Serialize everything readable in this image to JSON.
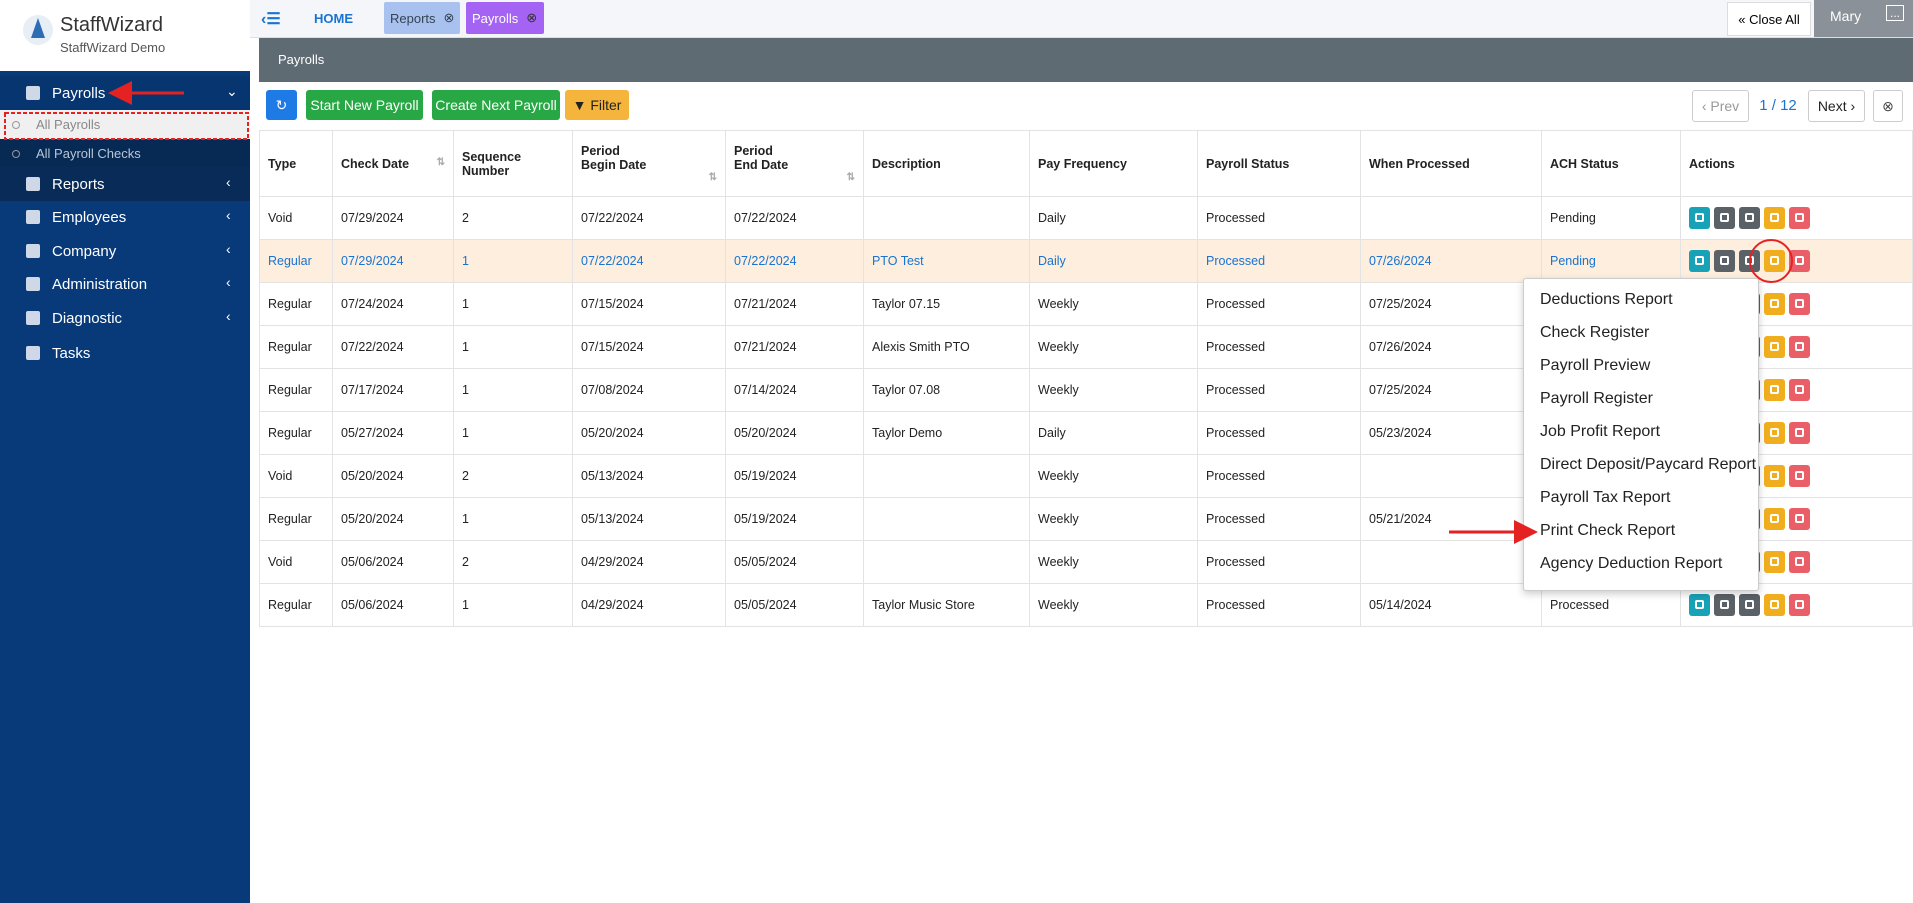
{
  "sidebar": {
    "brand": "StaffWizard",
    "subtitle": "StaffWizard Demo",
    "nav": [
      {
        "label": "Payrolls"
      },
      {
        "label": "Reports"
      },
      {
        "label": "Employees"
      },
      {
        "label": "Company"
      },
      {
        "label": "Administration"
      },
      {
        "label": "Diagnostic"
      },
      {
        "label": "Tasks"
      }
    ],
    "subnav": [
      "All Payrolls",
      "All Payroll Checks"
    ]
  },
  "topbar": {
    "home": "HOME",
    "tabs": [
      "Reports",
      "Payrolls"
    ],
    "close_all": "Close All",
    "user": "Mary",
    "more": "..."
  },
  "page": {
    "title": "Payrolls"
  },
  "toolbar": {
    "buttons": [
      "Start New Payroll",
      "Create Next Payroll",
      "Filter"
    ],
    "prev": "Prev",
    "page": "1 / 12",
    "next": "Next"
  },
  "table": {
    "columns": [
      "Type",
      "Check Date",
      "Sequence Number",
      "Period\nBegin Date",
      "Period\nEnd Date",
      "Description",
      "Pay Frequency",
      "Payroll Status",
      "When Processed",
      "ACH Status",
      "Actions"
    ],
    "rows": [
      [
        "Void",
        "07/29/2024",
        "2",
        "07/22/2024",
        "07/22/2024",
        null,
        "Daily",
        "Processed",
        null,
        "Pending"
      ],
      [
        "Regular",
        "07/29/2024",
        "1",
        "07/22/2024",
        "07/22/2024",
        "PTO Test",
        "Daily",
        "Processed",
        "07/26/2024",
        "Pending"
      ],
      [
        "Regular",
        "07/24/2024",
        "1",
        "07/15/2024",
        "07/21/2024",
        "Taylor 07.15",
        "Weekly",
        "Processed",
        "07/25/2024",
        null
      ],
      [
        "Regular",
        "07/22/2024",
        "1",
        "07/15/2024",
        "07/21/2024",
        "Alexis Smith PTO",
        "Weekly",
        "Processed",
        "07/26/2024",
        null
      ],
      [
        "Regular",
        "07/17/2024",
        "1",
        "07/08/2024",
        "07/14/2024",
        "Taylor 07.08",
        "Weekly",
        "Processed",
        "07/25/2024",
        null
      ],
      [
        "Regular",
        "05/27/2024",
        "1",
        "05/20/2024",
        "05/20/2024",
        "Taylor Demo",
        "Daily",
        "Processed",
        "05/23/2024",
        null
      ],
      [
        "Void",
        "05/20/2024",
        "2",
        "05/13/2024",
        "05/19/2024",
        null,
        "Weekly",
        "Processed",
        null,
        null
      ],
      [
        "Regular",
        "05/20/2024",
        "1",
        "05/13/2024",
        "05/19/2024",
        null,
        "Weekly",
        "Processed",
        "05/21/2024",
        null
      ],
      [
        "Void",
        "05/06/2024",
        "2",
        "04/29/2024",
        "05/05/2024",
        null,
        "Weekly",
        "Processed",
        null,
        null
      ],
      [
        "Regular",
        "05/06/2024",
        "1",
        "04/29/2024",
        "05/05/2024",
        "Taylor Music Store",
        "Weekly",
        "Processed",
        "05/14/2024",
        "Processed"
      ]
    ]
  },
  "menu": {
    "items": [
      "Deductions Report",
      "Check Register",
      "Payroll Preview",
      "Payroll Register",
      "Job Profit Report",
      "Direct Deposit/Paycard Report",
      "Payroll Tax Report",
      "Print Check Report",
      "Agency Deduction Report"
    ]
  }
}
